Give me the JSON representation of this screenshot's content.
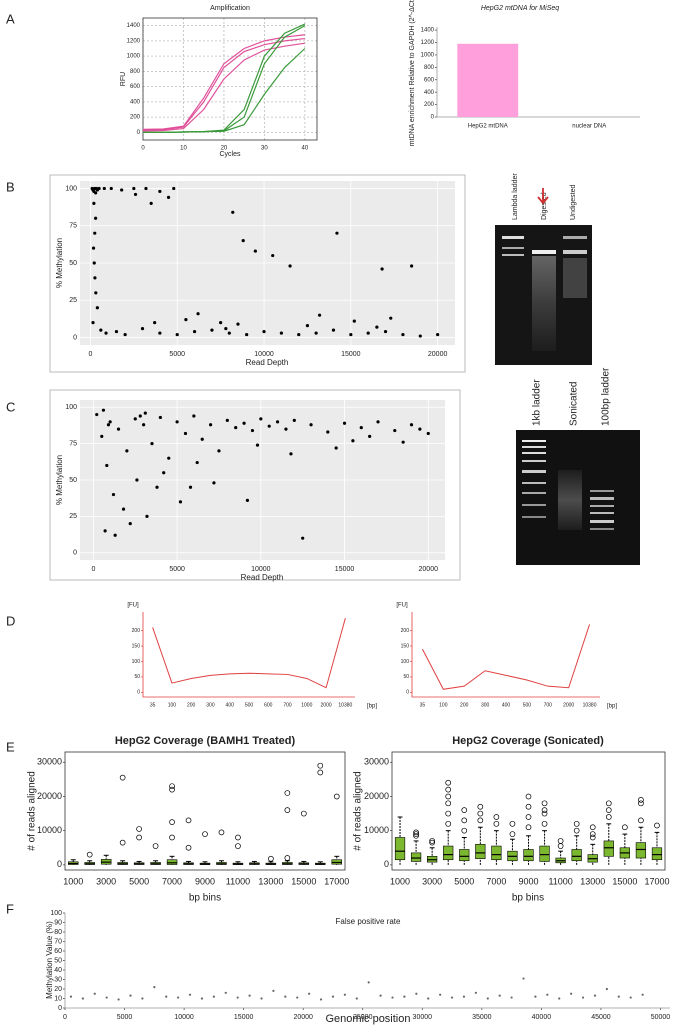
{
  "panels": [
    "A",
    "B",
    "C",
    "D",
    "E",
    "F"
  ],
  "gels": [
    {
      "lanes": [
        "Lambda ladder",
        "Digested",
        "Undigested"
      ]
    },
    {
      "lanes": [
        "1kb ladder",
        "Sonicated",
        "100bp ladder"
      ]
    }
  ],
  "chart_data": [
    {
      "type": "line",
      "title": "Amplification",
      "x_label": "Cycles",
      "y_label": "RFU",
      "x": [
        0,
        5,
        10,
        15,
        20,
        25,
        30,
        35,
        40
      ],
      "series": [
        {
          "color": "#e0509a",
          "values": [
            40,
            45,
            80,
            450,
            900,
            1100,
            1200,
            1250,
            1280
          ]
        },
        {
          "color": "#e0509a",
          "values": [
            30,
            35,
            70,
            400,
            850,
            1060,
            1150,
            1200,
            1230
          ]
        },
        {
          "color": "#e0509a",
          "values": [
            20,
            25,
            50,
            300,
            700,
            950,
            1080,
            1130,
            1170
          ]
        },
        {
          "color": "#3a9a3a",
          "values": [
            0,
            0,
            5,
            10,
            30,
            300,
            1000,
            1300,
            1420
          ]
        },
        {
          "color": "#3a9a3a",
          "values": [
            0,
            0,
            5,
            10,
            20,
            200,
            900,
            1250,
            1400
          ]
        },
        {
          "color": "#3a9a3a",
          "values": [
            0,
            0,
            5,
            10,
            15,
            100,
            500,
            850,
            1100
          ]
        }
      ],
      "xlim": [
        0,
        43
      ],
      "ylim": [
        -100,
        1500
      ],
      "xticks": [
        0,
        10,
        20,
        30,
        40
      ],
      "yticks": [
        0,
        200,
        400,
        600,
        800,
        1000,
        1200,
        1400
      ],
      "grid": true
    },
    {
      "type": "bar",
      "title": "HepG2 mtDNA for MiSeq",
      "y_label": "mtDNA enrichment Relative to GAPDH (2^-ΔCt)",
      "categories": [
        "HepG2 mtDNA",
        "nuclear DNA"
      ],
      "values": [
        1180,
        0
      ],
      "color": "#ff9fdc",
      "ylim": [
        0,
        1450
      ],
      "yticks": [
        0,
        200,
        400,
        600,
        800,
        1000,
        1200,
        1400
      ],
      "grid": false
    },
    {
      "type": "scatter",
      "x_label": "Read Depth",
      "y_label": "% Methylation",
      "color": "#000000",
      "background": "#ebebeb",
      "grid": true,
      "x": [
        100,
        150,
        200,
        250,
        300,
        350,
        400,
        500,
        800,
        1200,
        1800,
        2500,
        3200,
        4000,
        4800,
        200,
        300,
        250,
        180,
        220,
        260,
        310,
        400,
        150,
        600,
        900,
        1500,
        2000,
        3000,
        4000,
        5000,
        6000,
        7000,
        8000,
        9000,
        10000,
        11000,
        12000,
        13000,
        14000,
        15000,
        16000,
        17000,
        18000,
        19000,
        20000,
        2600,
        3500,
        4500,
        5500,
        7500,
        8200,
        8800,
        9500,
        11500,
        14200,
        16800,
        10500,
        12500,
        18500,
        7800,
        8500,
        13200,
        15200,
        17300,
        6200,
        3700,
        16500
      ],
      "values": [
        100,
        99,
        98,
        100,
        97,
        100,
        99,
        100,
        100,
        100,
        99,
        100,
        100,
        98,
        100,
        90,
        80,
        70,
        60,
        50,
        40,
        30,
        20,
        10,
        5,
        3,
        4,
        2,
        6,
        3,
        2,
        4,
        5,
        3,
        2,
        4,
        3,
        2,
        3,
        5,
        2,
        3,
        4,
        2,
        1,
        2,
        96,
        90,
        94,
        12,
        10,
        84,
        65,
        58,
        48,
        70,
        46,
        55,
        8,
        48,
        6,
        9,
        15,
        11,
        13,
        16,
        10,
        7
      ],
      "xlim": [
        -600,
        21000
      ],
      "ylim": [
        -5,
        105
      ],
      "xticks": [
        0,
        5000,
        10000,
        15000,
        20000
      ],
      "yticks": [
        0,
        25,
        50,
        75,
        100
      ]
    },
    {
      "type": "scatter",
      "x_label": "Read Depth",
      "y_label": "% Methylation",
      "color": "#000000",
      "background": "#ebebeb",
      "grid": true,
      "x": [
        200,
        500,
        800,
        1000,
        1500,
        2000,
        2500,
        3000,
        3500,
        4000,
        4500,
        5000,
        5500,
        6000,
        6500,
        7000,
        7500,
        8000,
        8500,
        9000,
        9500,
        10000,
        10500,
        11000,
        11500,
        12000,
        13000,
        14000,
        15000,
        16000,
        17000,
        18000,
        19000,
        20000,
        1200,
        1800,
        2200,
        2600,
        3200,
        3800,
        4200,
        5200,
        6200,
        7200,
        9200,
        12500,
        14500,
        16500,
        18500,
        700,
        1300,
        900,
        2800,
        5800,
        11800,
        600,
        3100,
        9800,
        15500,
        19500
      ],
      "values": [
        95,
        80,
        60,
        90,
        85,
        70,
        92,
        88,
        75,
        93,
        65,
        90,
        82,
        94,
        78,
        88,
        70,
        91,
        86,
        89,
        84,
        92,
        87,
        90,
        85,
        91,
        88,
        83,
        89,
        86,
        90,
        84,
        88,
        82,
        40,
        30,
        20,
        50,
        25,
        45,
        55,
        35,
        62,
        48,
        36,
        10,
        72,
        80,
        76,
        15,
        12,
        88,
        94,
        45,
        68,
        98,
        96,
        74,
        77,
        85
      ],
      "xlim": [
        -800,
        21000
      ],
      "ylim": [
        -5,
        105
      ],
      "xticks": [
        0,
        5000,
        10000,
        15000,
        20000
      ],
      "yticks": [
        0,
        25,
        50,
        75,
        100
      ]
    },
    {
      "type": "line",
      "x_label": "[bp]",
      "y_label": "[FU]",
      "color": "#e04040",
      "categories": [
        "35",
        "100",
        "200",
        "300",
        "400",
        "500",
        "600",
        "700",
        "1000",
        "2000",
        "10380"
      ],
      "values": [
        210,
        30,
        45,
        55,
        60,
        62,
        60,
        58,
        45,
        15,
        240
      ],
      "ylim": [
        -15,
        260
      ],
      "yticks": [
        0,
        50,
        100,
        150,
        200
      ],
      "grid": false
    },
    {
      "type": "line",
      "x_label": "[bp]",
      "y_label": "[FU]",
      "color": "#e04040",
      "categories": [
        "35",
        "100",
        "200",
        "300",
        "400",
        "500",
        "700",
        "2000",
        "10380"
      ],
      "values": [
        140,
        10,
        20,
        70,
        55,
        40,
        20,
        15,
        220
      ],
      "ylim": [
        -15,
        260
      ],
      "yticks": [
        0,
        50,
        100,
        150,
        200
      ],
      "grid": false
    },
    {
      "type": "box",
      "title": "HepG2 Coverage (BAMH1 Treated)",
      "x_label": "bp bins",
      "y_label": "# of reads aligned",
      "color": "#7cb82f",
      "categories": [
        "1000",
        null,
        "3000",
        null,
        "5000",
        null,
        "7000",
        null,
        "9000",
        null,
        "11000",
        null,
        "13000",
        null,
        "15000",
        null,
        "17000"
      ],
      "low": [
        0,
        0,
        0,
        0,
        0,
        0,
        0,
        0,
        0,
        0,
        0,
        0,
        0,
        0,
        0,
        0,
        0
      ],
      "q1": [
        100,
        100,
        200,
        100,
        100,
        100,
        100,
        100,
        100,
        100,
        100,
        100,
        100,
        100,
        100,
        100,
        200
      ],
      "median": [
        400,
        300,
        800,
        300,
        300,
        300,
        600,
        300,
        200,
        300,
        200,
        300,
        200,
        300,
        300,
        200,
        700
      ],
      "q3": [
        900,
        700,
        1600,
        700,
        600,
        700,
        1500,
        600,
        500,
        700,
        500,
        600,
        500,
        700,
        600,
        500,
        1500
      ],
      "high": [
        1500,
        1200,
        2800,
        1200,
        1000,
        1200,
        2500,
        1000,
        900,
        1200,
        900,
        1000,
        900,
        1200,
        1000,
        900,
        2500
      ],
      "outliers": [
        [],
        [
          3000
        ],
        [],
        [
          25500,
          6500
        ],
        [
          10500,
          8000
        ],
        [
          5500
        ],
        [
          23000,
          22000,
          12500,
          8000
        ],
        [
          13000,
          5000
        ],
        [
          9000
        ],
        [
          9500
        ],
        [
          8000,
          5500
        ],
        [],
        [
          1800
        ],
        [
          16000,
          21000,
          2000
        ],
        [
          15000
        ],
        [
          27000,
          29000
        ],
        [
          20000
        ]
      ],
      "ylim": [
        -1500,
        33000
      ],
      "yticks": [
        0,
        10000,
        20000,
        30000
      ],
      "grid": false
    },
    {
      "type": "box",
      "title": "HepG2 Coverage (Sonicated)",
      "x_label": "bp bins",
      "y_label": "# of reads aligned",
      "color": "#7cb82f",
      "categories": [
        "1000",
        null,
        "3000",
        null,
        "5000",
        null,
        "7000",
        null,
        "9000",
        null,
        "11000",
        null,
        "13000",
        null,
        "15000",
        null,
        "17000"
      ],
      "low": [
        0,
        0,
        0,
        0,
        0,
        0,
        0,
        0,
        0,
        0,
        0,
        0,
        0,
        0,
        0,
        0,
        0
      ],
      "q1": [
        1500,
        1000,
        800,
        1500,
        1200,
        1800,
        1500,
        1200,
        1200,
        1000,
        600,
        1200,
        800,
        2500,
        2000,
        2000,
        1500
      ],
      "median": [
        4000,
        2000,
        1500,
        3000,
        2500,
        3500,
        3000,
        2500,
        2500,
        3000,
        1200,
        2500,
        1800,
        5000,
        3500,
        4500,
        3000
      ],
      "q3": [
        8000,
        3500,
        2500,
        5500,
        4500,
        6000,
        5500,
        4000,
        4500,
        5500,
        2000,
        4500,
        3000,
        7000,
        5000,
        6500,
        5000
      ],
      "high": [
        14000,
        7000,
        5000,
        10000,
        8000,
        11000,
        10000,
        7500,
        8500,
        10000,
        4000,
        8500,
        6000,
        12000,
        9000,
        11000,
        9500
      ],
      "outliers": [
        [],
        [
          8500,
          9000,
          9500
        ],
        [
          6500,
          7000
        ],
        [
          12000,
          15000,
          18000,
          20000,
          22000,
          24000
        ],
        [
          10000,
          13000,
          16000
        ],
        [
          13000,
          15000,
          17000
        ],
        [
          12000,
          14000
        ],
        [
          9000,
          12000
        ],
        [
          11000,
          14000,
          17000,
          20000
        ],
        [
          12000,
          15000,
          16000,
          18000
        ],
        [
          5500,
          7000
        ],
        [
          10000,
          12000
        ],
        [
          8000,
          9000,
          11000
        ],
        [
          14000,
          16000,
          18000
        ],
        [
          11000
        ],
        [
          13000,
          18000,
          19000
        ],
        [
          11500
        ]
      ],
      "ylim": [
        -1500,
        33000
      ],
      "yticks": [
        0,
        10000,
        20000,
        30000
      ],
      "grid": false
    },
    {
      "type": "scatter",
      "title": "False positive rate",
      "x_label": "Genomic position",
      "y_label": "Methylation Value (%)",
      "color": "#666666",
      "x": [
        500,
        1500,
        2500,
        3500,
        4500,
        5500,
        6500,
        7500,
        8500,
        9500,
        10500,
        11500,
        12500,
        13500,
        14500,
        15500,
        16500,
        17500,
        18500,
        19500,
        20500,
        21500,
        22500,
        23500,
        24500,
        25500,
        26500,
        27500,
        28500,
        29500,
        30500,
        31500,
        32500,
        33500,
        34500,
        35500,
        36500,
        37500,
        38500,
        39500,
        40500,
        41500,
        42500,
        43500,
        44500,
        45500,
        46500,
        47500,
        48500
      ],
      "values": [
        12,
        10,
        15,
        11,
        9,
        13,
        10,
        22,
        12,
        11,
        14,
        10,
        12,
        16,
        11,
        13,
        10,
        18,
        12,
        11,
        15,
        9,
        12,
        14,
        10,
        27,
        13,
        11,
        12,
        15,
        10,
        14,
        11,
        12,
        16,
        10,
        13,
        11,
        31,
        12,
        14,
        10,
        15,
        11,
        13,
        20,
        12,
        11,
        14
      ],
      "xlim": [
        0,
        50800
      ],
      "ylim": [
        0,
        100
      ],
      "xticks": [
        0,
        5000,
        10000,
        15000,
        20000,
        25000,
        30000,
        35000,
        40000,
        45000,
        50000
      ],
      "yticks": [
        0,
        10,
        20,
        30,
        40,
        50,
        60,
        70,
        80,
        90,
        100
      ],
      "grid": false
    }
  ]
}
